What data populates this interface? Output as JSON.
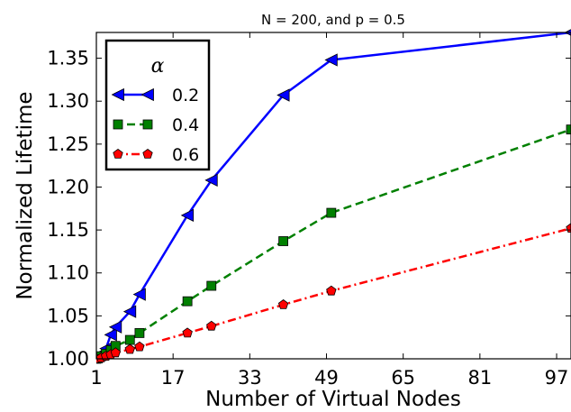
{
  "chart_data": {
    "type": "line",
    "title": "N = 200, and p = 0.5",
    "xlabel": "Number of Virtual Nodes",
    "ylabel": "Normalized Lifetime",
    "xlim": [
      1,
      100
    ],
    "ylim": [
      1.0,
      1.38
    ],
    "xticks": [
      1,
      17,
      33,
      49,
      65,
      81,
      97
    ],
    "yticks": [
      "1.00",
      "1.05",
      "1.10",
      "1.15",
      "1.20",
      "1.25",
      "1.30",
      "1.35"
    ],
    "legend": {
      "title": "α",
      "placement": "top-left"
    },
    "series": [
      {
        "name": "0.2",
        "color": "#0000ff",
        "style": "solid",
        "marker": "left-triangle",
        "x": [
          1,
          2,
          3,
          4,
          5,
          8,
          10,
          20,
          25,
          40,
          50,
          100
        ],
        "y": [
          1.002,
          1.006,
          1.012,
          1.028,
          1.037,
          1.055,
          1.075,
          1.167,
          1.208,
          1.307,
          1.348,
          1.38
        ]
      },
      {
        "name": "0.4",
        "color": "#008000",
        "style": "dashed",
        "marker": "square",
        "x": [
          1,
          2,
          3,
          4,
          5,
          8,
          10,
          20,
          25,
          40,
          50,
          100
        ],
        "y": [
          1.0,
          1.003,
          1.006,
          1.01,
          1.015,
          1.022,
          1.03,
          1.067,
          1.085,
          1.137,
          1.17,
          1.267
        ]
      },
      {
        "name": "0.6",
        "color": "#ff0000",
        "style": "dashdot",
        "marker": "pentagon",
        "x": [
          1,
          2,
          3,
          4,
          5,
          8,
          10,
          20,
          25,
          40,
          50,
          100
        ],
        "y": [
          1.0,
          1.001,
          1.003,
          1.005,
          1.007,
          1.011,
          1.014,
          1.03,
          1.038,
          1.063,
          1.079,
          1.152
        ]
      }
    ]
  }
}
